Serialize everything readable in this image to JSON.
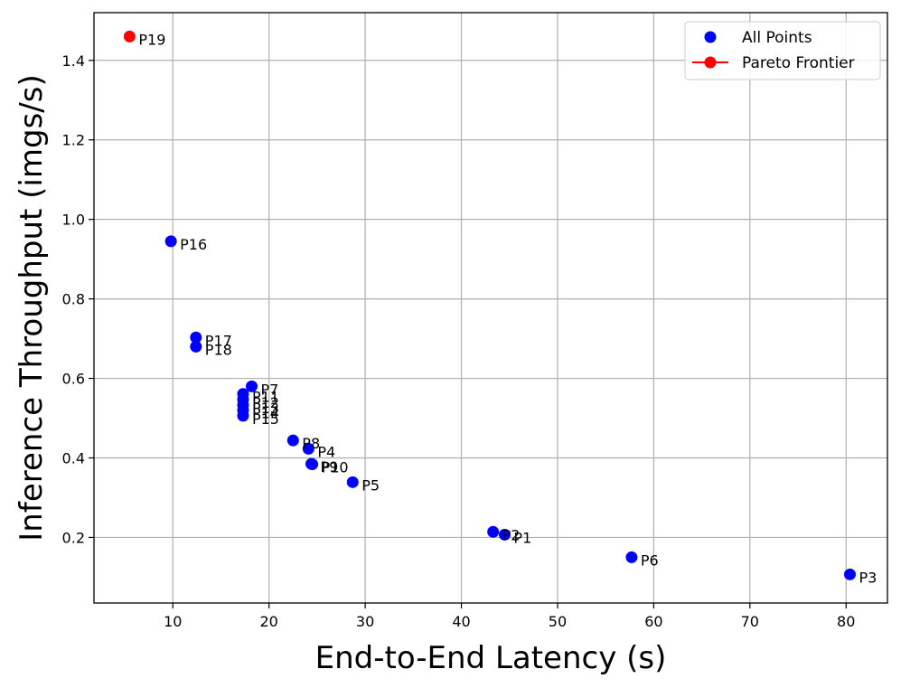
{
  "chart_data": {
    "type": "scatter",
    "xlabel": "End-to-End Latency (s)",
    "ylabel": "Inference Throughput (imgs/s)",
    "xlim": [
      1.8,
      84.3
    ],
    "ylim": [
      0.035,
      1.52
    ],
    "xticks": [
      10,
      20,
      30,
      40,
      50,
      60,
      70,
      80
    ],
    "yticks": [
      0.2,
      0.4,
      0.6,
      0.8,
      1.0,
      1.2,
      1.4
    ],
    "xtick_labels": [
      "10",
      "20",
      "30",
      "40",
      "50",
      "60",
      "70",
      "80"
    ],
    "ytick_labels": [
      "0.2",
      "0.4",
      "0.6",
      "0.8",
      "1.0",
      "1.2",
      "1.4"
    ],
    "grid": true,
    "legend_position": "top-right",
    "series": [
      {
        "name": "All Points",
        "color": "#0000ff",
        "points": [
          {
            "label": "P1",
            "x": 44.5,
            "y": 0.207
          },
          {
            "label": "P2",
            "x": 43.3,
            "y": 0.214
          },
          {
            "label": "P3",
            "x": 80.4,
            "y": 0.107
          },
          {
            "label": "P4",
            "x": 24.1,
            "y": 0.423
          },
          {
            "label": "P5",
            "x": 28.7,
            "y": 0.339
          },
          {
            "label": "P6",
            "x": 57.7,
            "y": 0.15
          },
          {
            "label": "P7",
            "x": 18.2,
            "y": 0.58
          },
          {
            "label": "P8",
            "x": 22.5,
            "y": 0.444
          },
          {
            "label": "P9",
            "x": 24.4,
            "y": 0.385
          },
          {
            "label": "P10",
            "x": 24.5,
            "y": 0.384
          },
          {
            "label": "P11",
            "x": 17.3,
            "y": 0.561
          },
          {
            "label": "P12",
            "x": 17.3,
            "y": 0.547
          },
          {
            "label": "P13",
            "x": 17.3,
            "y": 0.533
          },
          {
            "label": "P14",
            "x": 17.3,
            "y": 0.52
          },
          {
            "label": "P15",
            "x": 17.3,
            "y": 0.506
          },
          {
            "label": "P16",
            "x": 9.8,
            "y": 0.945
          },
          {
            "label": "P17",
            "x": 12.4,
            "y": 0.703
          },
          {
            "label": "P18",
            "x": 12.4,
            "y": 0.68
          }
        ]
      },
      {
        "name": "Pareto Frontier",
        "color": "#ff0000",
        "line": true,
        "points": [
          {
            "label": "P19",
            "x": 5.5,
            "y": 1.46
          }
        ]
      }
    ]
  }
}
